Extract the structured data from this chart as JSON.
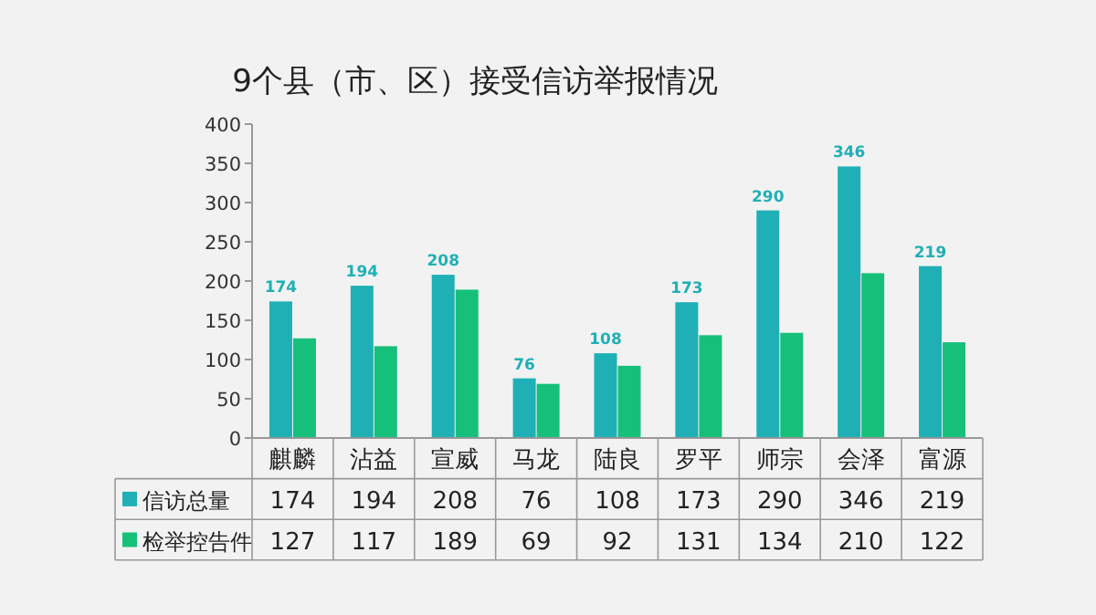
{
  "chart_data": {
    "type": "bar",
    "title": "9个县（市、区）接受信访举报情况",
    "categories": [
      "麒麟",
      "沾益",
      "宣威",
      "马龙",
      "陆良",
      "罗平",
      "师宗",
      "会泽",
      "富源"
    ],
    "series": [
      {
        "name": "信访总量",
        "color": "#1fb0b6",
        "values": [
          174,
          194,
          208,
          76,
          108,
          173,
          290,
          346,
          219
        ]
      },
      {
        "name": "检举控告件",
        "color": "#17c07a",
        "values": [
          127,
          117,
          189,
          69,
          92,
          131,
          134,
          210,
          122
        ]
      }
    ],
    "ylim": [
      0,
      400
    ],
    "yticks": [
      0,
      50,
      100,
      150,
      200,
      250,
      300,
      350,
      400
    ],
    "annotations": [
      {
        "text": "174",
        "x": "麒麟",
        "y": 174
      },
      {
        "text": "194",
        "x": "沾益",
        "y": 194
      },
      {
        "text": "208",
        "x": "宣威",
        "y": 208
      },
      {
        "text": "76",
        "x": "马龙",
        "y": 76
      },
      {
        "text": "108",
        "x": "陆良",
        "y": 108
      },
      {
        "text": "173",
        "x": "罗平",
        "y": 173
      },
      {
        "text": "290",
        "x": "师宗",
        "y": 290
      },
      {
        "text": "346",
        "x": "会泽",
        "y": 346
      },
      {
        "text": "219",
        "x": "富源",
        "y": 219
      }
    ],
    "grid": false,
    "legend": "bottom",
    "data_labels": true
  }
}
